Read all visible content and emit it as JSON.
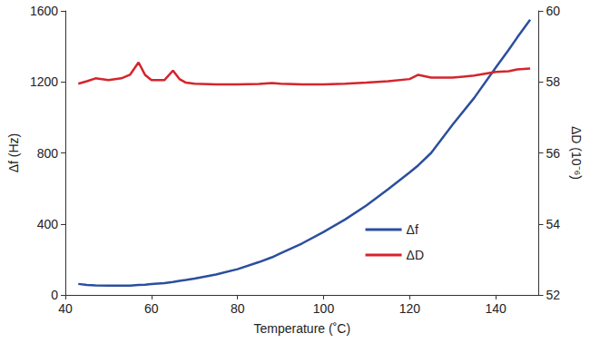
{
  "chart_data": {
    "type": "line",
    "x_label": "Temperature (˚C)",
    "y_label": "Δf (Hz)",
    "y2_label": "ΔD (10⁻⁶)",
    "x": [
      43,
      45,
      47,
      50,
      53,
      55,
      57,
      58.5,
      60,
      63,
      65,
      66.5,
      68,
      70,
      75,
      80,
      85,
      88,
      90,
      95,
      100,
      105,
      110,
      115,
      120,
      122,
      125,
      130,
      135,
      140,
      143,
      145,
      148
    ],
    "series": [
      {
        "name": "Δf",
        "color": "#2b4f9e",
        "line_style": "solid",
        "values": [
          62,
          56,
          54,
          52,
          52,
          53,
          56,
          58,
          61,
          67,
          73,
          79,
          84,
          92,
          115,
          145,
          185,
          212,
          235,
          290,
          355,
          425,
          505,
          595,
          690,
          730,
          800,
          960,
          1110,
          1280,
          1380,
          1450,
          1550
        ]
      },
      {
        "name": "ΔD",
        "color": "#d4252c",
        "line_style": "solid",
        "axis": "y2",
        "values": [
          57.95,
          58.02,
          58.1,
          58.05,
          58.1,
          58.2,
          58.55,
          58.2,
          58.05,
          58.05,
          58.32,
          58.08,
          57.98,
          57.95,
          57.93,
          57.93,
          57.94,
          57.97,
          57.95,
          57.93,
          57.93,
          57.95,
          57.98,
          58.02,
          58.08,
          58.2,
          58.12,
          58.12,
          58.18,
          58.28,
          58.3,
          58.35,
          58.38
        ]
      }
    ],
    "xlim": [
      40,
      150
    ],
    "xticks": [
      40,
      60,
      80,
      100,
      120,
      140
    ],
    "ylim": [
      0,
      1600
    ],
    "yticks": [
      0,
      400,
      800,
      1200,
      1600
    ],
    "y2lim": [
      52,
      60
    ],
    "y2ticks": [
      52,
      54,
      56,
      58,
      60
    ],
    "grid": false,
    "legend": "lower right"
  }
}
